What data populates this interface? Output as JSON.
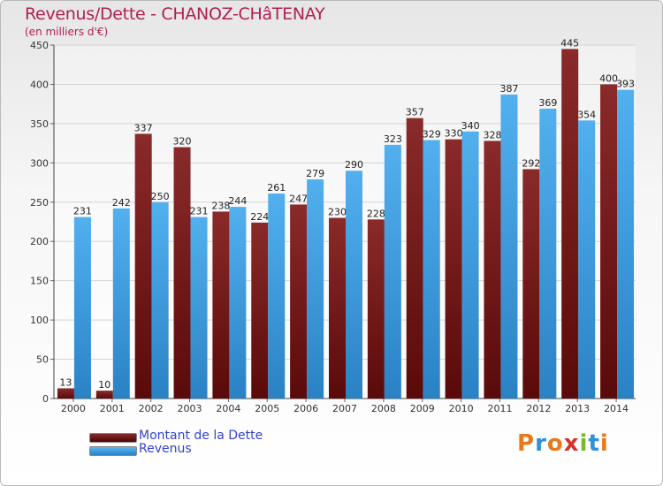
{
  "chart_data": {
    "type": "bar",
    "title": "Revenus/Dette - CHANOZ-CHâTENAY",
    "subtitle": "(en milliers d'€)",
    "categories": [
      "2000",
      "2001",
      "2002",
      "2003",
      "2004",
      "2005",
      "2006",
      "2007",
      "2008",
      "2009",
      "2010",
      "2011",
      "2012",
      "2013",
      "2014"
    ],
    "series": [
      {
        "name": "Montant de la Dette",
        "color": "#7a1a1a",
        "values": [
          13,
          10,
          337,
          320,
          238,
          224,
          247,
          230,
          228,
          357,
          330,
          328,
          292,
          445,
          400
        ]
      },
      {
        "name": "Revenus",
        "color": "#3d9de0",
        "values": [
          231,
          242,
          250,
          231,
          244,
          261,
          279,
          290,
          323,
          329,
          340,
          387,
          369,
          354,
          393
        ]
      }
    ],
    "ylim": [
      0,
      450
    ],
    "yticks": [
      0,
      50,
      100,
      150,
      200,
      250,
      300,
      350,
      400,
      450
    ],
    "grid": true,
    "legend_position": "bottom-left"
  },
  "logo": {
    "text": "Proxiti",
    "colors": [
      "#e87a1e",
      "#2f8fd8",
      "#e87a1e",
      "#d9302a",
      "#7ab82c",
      "#2f8fd8",
      "#e87a1e"
    ]
  }
}
